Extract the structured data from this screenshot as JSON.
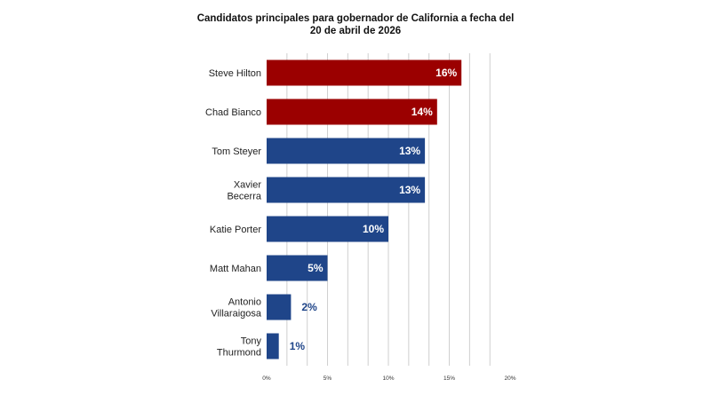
{
  "chart_data": {
    "type": "bar",
    "orientation": "horizontal",
    "title_lines": [
      "Candidatos principales para gobernador de California a fecha del",
      "20 de abril de 2026"
    ],
    "categories": [
      [
        "Steve Hilton"
      ],
      [
        "Chad Bianco"
      ],
      [
        "Tom Steyer"
      ],
      [
        "Xavier",
        "Becerra"
      ],
      [
        "Katie Porter"
      ],
      [
        "Matt Mahan"
      ],
      [
        "Antonio",
        "Villaraigosa"
      ],
      [
        "Tony",
        "Thurmond"
      ]
    ],
    "values": [
      16,
      14,
      13,
      13,
      10,
      5,
      2,
      1
    ],
    "data_labels": [
      "16%",
      "14%",
      "13%",
      "13%",
      "10%",
      "5%",
      "2%",
      "1%"
    ],
    "bar_colors": [
      "#9b0000",
      "#9b0000",
      "#1f4589",
      "#1f4589",
      "#1f4589",
      "#1f4589",
      "#1f4589",
      "#1f4589"
    ],
    "xlim": [
      0,
      20
    ],
    "x_ticks": [
      0,
      5,
      10,
      15,
      20
    ],
    "x_tick_labels": [
      "0%",
      "5%",
      "10%",
      "15%",
      "20%"
    ],
    "grid": true,
    "grid_step": 1.667
  }
}
